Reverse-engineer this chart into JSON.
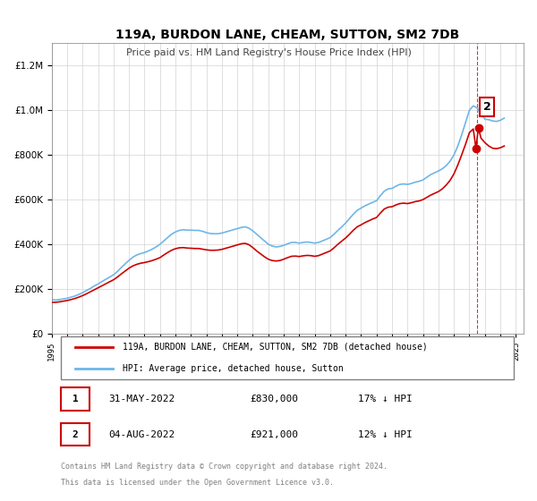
{
  "title": "119A, BURDON LANE, CHEAM, SUTTON, SM2 7DB",
  "subtitle": "Price paid vs. HM Land Registry's House Price Index (HPI)",
  "hpi_label": "HPI: Average price, detached house, Sutton",
  "price_label": "119A, BURDON LANE, CHEAM, SUTTON, SM2 7DB (detached house)",
  "footer1": "Contains HM Land Registry data © Crown copyright and database right 2024.",
  "footer2": "This data is licensed under the Open Government Licence v3.0.",
  "transaction1_label": "1",
  "transaction1_date": "31-MAY-2022",
  "transaction1_price": "£830,000",
  "transaction1_hpi": "17% ↓ HPI",
  "transaction2_label": "2",
  "transaction2_date": "04-AUG-2022",
  "transaction2_price": "£921,000",
  "transaction2_hpi": "12% ↓ HPI",
  "hpi_color": "#6eb6e8",
  "price_color": "#cc0000",
  "dashed_vline_color": "#cc0000",
  "marker1_color": "#cc0000",
  "marker2_color": "#cc0000",
  "ylim": [
    0,
    1300000
  ],
  "xlim_start": 1995.0,
  "xlim_end": 2025.5,
  "transaction1_x": 2022.42,
  "transaction1_y": 830000,
  "transaction2_x": 2022.58,
  "transaction2_y": 921000,
  "vline_x": 2022.5,
  "hpi_data_x": [
    1995.0,
    1995.25,
    1995.5,
    1995.75,
    1996.0,
    1996.25,
    1996.5,
    1996.75,
    1997.0,
    1997.25,
    1997.5,
    1997.75,
    1998.0,
    1998.25,
    1998.5,
    1998.75,
    1999.0,
    1999.25,
    1999.5,
    1999.75,
    2000.0,
    2000.25,
    2000.5,
    2000.75,
    2001.0,
    2001.25,
    2001.5,
    2001.75,
    2002.0,
    2002.25,
    2002.5,
    2002.75,
    2003.0,
    2003.25,
    2003.5,
    2003.75,
    2004.0,
    2004.25,
    2004.5,
    2004.75,
    2005.0,
    2005.25,
    2005.5,
    2005.75,
    2006.0,
    2006.25,
    2006.5,
    2006.75,
    2007.0,
    2007.25,
    2007.5,
    2007.75,
    2008.0,
    2008.25,
    2008.5,
    2008.75,
    2009.0,
    2009.25,
    2009.5,
    2009.75,
    2010.0,
    2010.25,
    2010.5,
    2010.75,
    2011.0,
    2011.25,
    2011.5,
    2011.75,
    2012.0,
    2012.25,
    2012.5,
    2012.75,
    2013.0,
    2013.25,
    2013.5,
    2013.75,
    2014.0,
    2014.25,
    2014.5,
    2014.75,
    2015.0,
    2015.25,
    2015.5,
    2015.75,
    2016.0,
    2016.25,
    2016.5,
    2016.75,
    2017.0,
    2017.25,
    2017.5,
    2017.75,
    2018.0,
    2018.25,
    2018.5,
    2018.75,
    2019.0,
    2019.25,
    2019.5,
    2019.75,
    2020.0,
    2020.25,
    2020.5,
    2020.75,
    2021.0,
    2021.25,
    2021.5,
    2021.75,
    2022.0,
    2022.25,
    2022.5,
    2022.75,
    2023.0,
    2023.25,
    2023.5,
    2023.75,
    2024.0,
    2024.25
  ],
  "hpi_data_y": [
    152000,
    150000,
    152000,
    155000,
    158000,
    163000,
    168000,
    175000,
    183000,
    193000,
    202000,
    213000,
    222000,
    233000,
    243000,
    253000,
    263000,
    278000,
    296000,
    312000,
    328000,
    342000,
    352000,
    358000,
    363000,
    370000,
    378000,
    388000,
    400000,
    415000,
    430000,
    445000,
    455000,
    462000,
    465000,
    463000,
    463000,
    462000,
    462000,
    458000,
    452000,
    448000,
    447000,
    447000,
    450000,
    455000,
    460000,
    465000,
    470000,
    475000,
    478000,
    472000,
    460000,
    445000,
    430000,
    415000,
    400000,
    392000,
    388000,
    390000,
    395000,
    402000,
    408000,
    408000,
    405000,
    408000,
    410000,
    408000,
    405000,
    408000,
    415000,
    422000,
    430000,
    445000,
    462000,
    478000,
    495000,
    515000,
    535000,
    552000,
    562000,
    572000,
    580000,
    588000,
    595000,
    618000,
    638000,
    648000,
    650000,
    660000,
    668000,
    670000,
    668000,
    672000,
    678000,
    682000,
    688000,
    700000,
    712000,
    720000,
    728000,
    738000,
    752000,
    772000,
    800000,
    840000,
    890000,
    945000,
    1000000,
    1020000,
    1010000,
    985000,
    960000,
    958000,
    952000,
    950000,
    955000,
    965000
  ],
  "price_data_x": [
    1995.0,
    1995.25,
    1995.5,
    1995.75,
    1996.0,
    1996.25,
    1996.5,
    1996.75,
    1997.0,
    1997.25,
    1997.5,
    1997.75,
    1998.0,
    1998.25,
    1998.5,
    1998.75,
    1999.0,
    1999.25,
    1999.5,
    1999.75,
    2000.0,
    2000.25,
    2000.5,
    2000.75,
    2001.0,
    2001.25,
    2001.5,
    2001.75,
    2002.0,
    2002.25,
    2002.5,
    2002.75,
    2003.0,
    2003.25,
    2003.5,
    2003.75,
    2004.0,
    2004.25,
    2004.5,
    2004.75,
    2005.0,
    2005.25,
    2005.5,
    2005.75,
    2006.0,
    2006.25,
    2006.5,
    2006.75,
    2007.0,
    2007.25,
    2007.5,
    2007.75,
    2008.0,
    2008.25,
    2008.5,
    2008.75,
    2009.0,
    2009.25,
    2009.5,
    2009.75,
    2010.0,
    2010.25,
    2010.5,
    2010.75,
    2011.0,
    2011.25,
    2011.5,
    2011.75,
    2012.0,
    2012.25,
    2012.5,
    2012.75,
    2013.0,
    2013.25,
    2013.5,
    2013.75,
    2014.0,
    2014.25,
    2014.5,
    2014.75,
    2015.0,
    2015.25,
    2015.5,
    2015.75,
    2016.0,
    2016.25,
    2016.5,
    2016.75,
    2017.0,
    2017.25,
    2017.5,
    2017.75,
    2018.0,
    2018.25,
    2018.5,
    2018.75,
    2019.0,
    2019.25,
    2019.5,
    2019.75,
    2020.0,
    2020.25,
    2020.5,
    2020.75,
    2021.0,
    2021.25,
    2021.5,
    2021.75,
    2022.0,
    2022.25,
    2022.42,
    2022.58,
    2022.75,
    2023.0,
    2023.25,
    2023.5,
    2023.75,
    2024.0,
    2024.25
  ],
  "price_data_y": [
    140000,
    140000,
    142000,
    145000,
    148000,
    152000,
    157000,
    163000,
    170000,
    178000,
    187000,
    196000,
    205000,
    214000,
    223000,
    232000,
    241000,
    253000,
    267000,
    280000,
    293000,
    303000,
    310000,
    315000,
    318000,
    322000,
    327000,
    333000,
    340000,
    352000,
    363000,
    373000,
    380000,
    384000,
    385000,
    383000,
    382000,
    381000,
    381000,
    378000,
    375000,
    373000,
    373000,
    374000,
    377000,
    382000,
    387000,
    392000,
    397000,
    402000,
    404000,
    398000,
    385000,
    370000,
    357000,
    344000,
    333000,
    327000,
    325000,
    327000,
    333000,
    340000,
    346000,
    347000,
    345000,
    348000,
    350000,
    349000,
    346000,
    349000,
    356000,
    363000,
    370000,
    384000,
    400000,
    414000,
    428000,
    445000,
    463000,
    478000,
    487000,
    497000,
    505000,
    513000,
    520000,
    540000,
    558000,
    566000,
    568000,
    576000,
    582000,
    584000,
    582000,
    586000,
    591000,
    594000,
    600000,
    610000,
    620000,
    628000,
    636000,
    648000,
    665000,
    686000,
    715000,
    755000,
    800000,
    848000,
    900000,
    916000,
    830000,
    921000,
    875000,
    855000,
    840000,
    830000,
    828000,
    832000,
    840000
  ]
}
